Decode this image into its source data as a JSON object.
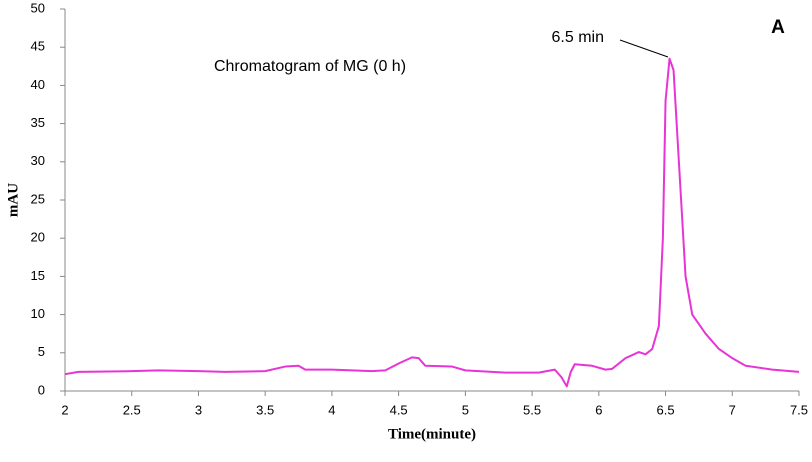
{
  "chart_data": {
    "type": "line",
    "title": "Chromatogram of MG (0 h)",
    "panel_label": "A",
    "annotation": "6.5 min",
    "x_label": "Time(minute)",
    "y_label": "mAU",
    "xlim": [
      2,
      7.5
    ],
    "xticks": [
      2,
      2.5,
      3,
      3.5,
      4,
      4.5,
      5,
      5.5,
      6,
      6.5,
      7,
      7.5
    ],
    "ylim": [
      0,
      50
    ],
    "yticks": [
      0,
      5,
      10,
      15,
      20,
      25,
      30,
      35,
      40,
      45,
      50
    ],
    "grid": false,
    "series": [
      {
        "color": "#e834d6",
        "x": [
          2.0,
          2.1,
          2.5,
          2.7,
          3.0,
          3.2,
          3.5,
          3.65,
          3.75,
          3.8,
          4.0,
          4.3,
          4.4,
          4.5,
          4.6,
          4.65,
          4.7,
          4.9,
          5.0,
          5.3,
          5.55,
          5.67,
          5.72,
          5.76,
          5.79,
          5.82,
          5.95,
          6.05,
          6.1,
          6.2,
          6.3,
          6.35,
          6.4,
          6.45,
          6.48,
          6.5,
          6.53,
          6.56,
          6.6,
          6.65,
          6.7,
          6.8,
          6.9,
          7.0,
          7.1,
          7.3,
          7.5
        ],
        "values": [
          2.2,
          2.5,
          2.6,
          2.7,
          2.6,
          2.5,
          2.6,
          3.2,
          3.3,
          2.8,
          2.8,
          2.6,
          2.7,
          3.6,
          4.4,
          4.3,
          3.3,
          3.2,
          2.7,
          2.4,
          2.4,
          2.8,
          1.8,
          0.6,
          2.5,
          3.5,
          3.3,
          2.8,
          2.9,
          4.3,
          5.1,
          4.8,
          5.5,
          8.5,
          20,
          38,
          43.5,
          42,
          30,
          15,
          10,
          7.5,
          5.5,
          4.3,
          3.3,
          2.8,
          2.5
        ]
      }
    ]
  }
}
